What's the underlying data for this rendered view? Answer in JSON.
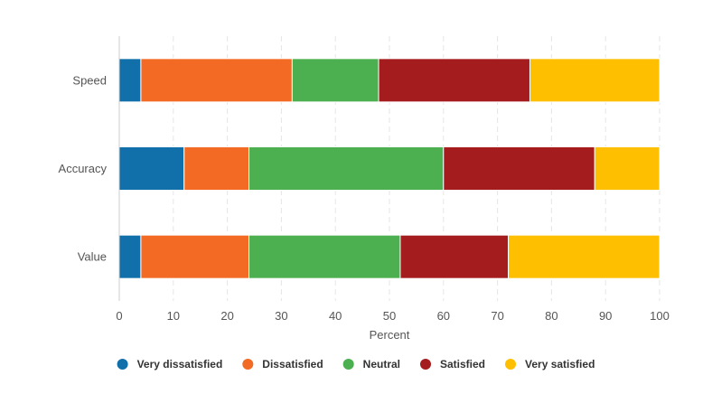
{
  "chart_data": {
    "type": "bar",
    "orientation": "horizontal",
    "stacked": true,
    "categories": [
      "Speed",
      "Accuracy",
      "Value"
    ],
    "series": [
      {
        "name": "Very dissatisfied",
        "values": [
          4,
          12,
          4
        ],
        "color": "#1170aa"
      },
      {
        "name": "Dissatisfied",
        "values": [
          28,
          12,
          20
        ],
        "color": "#f26a24"
      },
      {
        "name": "Neutral",
        "values": [
          16,
          36,
          28
        ],
        "color": "#4caf50"
      },
      {
        "name": "Satisfied",
        "values": [
          28,
          28,
          20
        ],
        "color": "#a51c1e"
      },
      {
        "name": "Very satisfied",
        "values": [
          24,
          12,
          28
        ],
        "color": "#fdbf00"
      }
    ],
    "xlabel": "Percent",
    "ylabel": "",
    "xlim": [
      0,
      100
    ],
    "xticks": [
      "0",
      "10",
      "20",
      "30",
      "40",
      "50",
      "60",
      "70",
      "80",
      "90",
      "100"
    ],
    "grid": true,
    "legend": "bottom-center"
  }
}
